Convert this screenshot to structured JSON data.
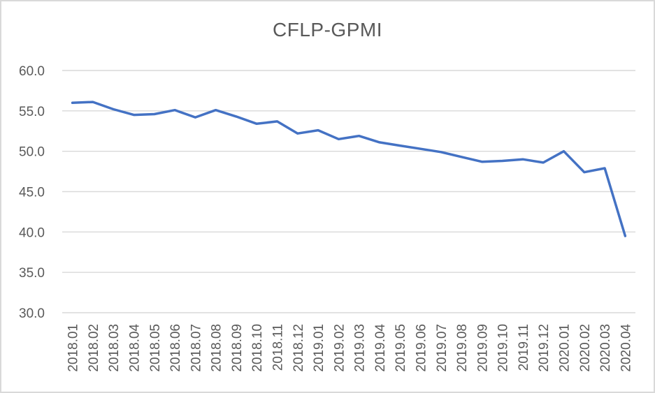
{
  "chart": {
    "title": "CFLP-GPMI"
  },
  "chart_data": {
    "type": "line",
    "title": "CFLP-GPMI",
    "categories": [
      "2018.01",
      "2018.02",
      "2018.03",
      "2018.04",
      "2018.05",
      "2018.06",
      "2018.07",
      "2018.08",
      "2018.09",
      "2018.10",
      "2018.11",
      "2018.12",
      "2019.01",
      "2019.02",
      "2019.03",
      "2019.04",
      "2019.05",
      "2019.06",
      "2019.07",
      "2019.08",
      "2019.09",
      "2019.10",
      "2019.11",
      "2019.12",
      "2020.01",
      "2020.02",
      "2020.03",
      "2020.04"
    ],
    "values": [
      56.0,
      56.1,
      55.2,
      54.5,
      54.6,
      55.1,
      54.2,
      55.1,
      54.3,
      53.4,
      53.7,
      52.2,
      52.6,
      51.5,
      51.9,
      51.1,
      50.7,
      50.3,
      49.9,
      49.3,
      48.7,
      48.8,
      49.0,
      48.6,
      50.0,
      47.4,
      47.9,
      39.5
    ],
    "y_ticks": [
      "60.0",
      "55.0",
      "50.0",
      "45.0",
      "40.0",
      "35.0",
      "30.0"
    ],
    "ylim": [
      30,
      60
    ],
    "xlabel": "",
    "ylabel": "",
    "grid": true,
    "legend_position": "none",
    "line_color": "#4472C4",
    "gridline_color": "#D9D9D9",
    "axis_text_color": "#595959",
    "title_color": "#595959",
    "frame_border_color": "#D9D9D9"
  }
}
